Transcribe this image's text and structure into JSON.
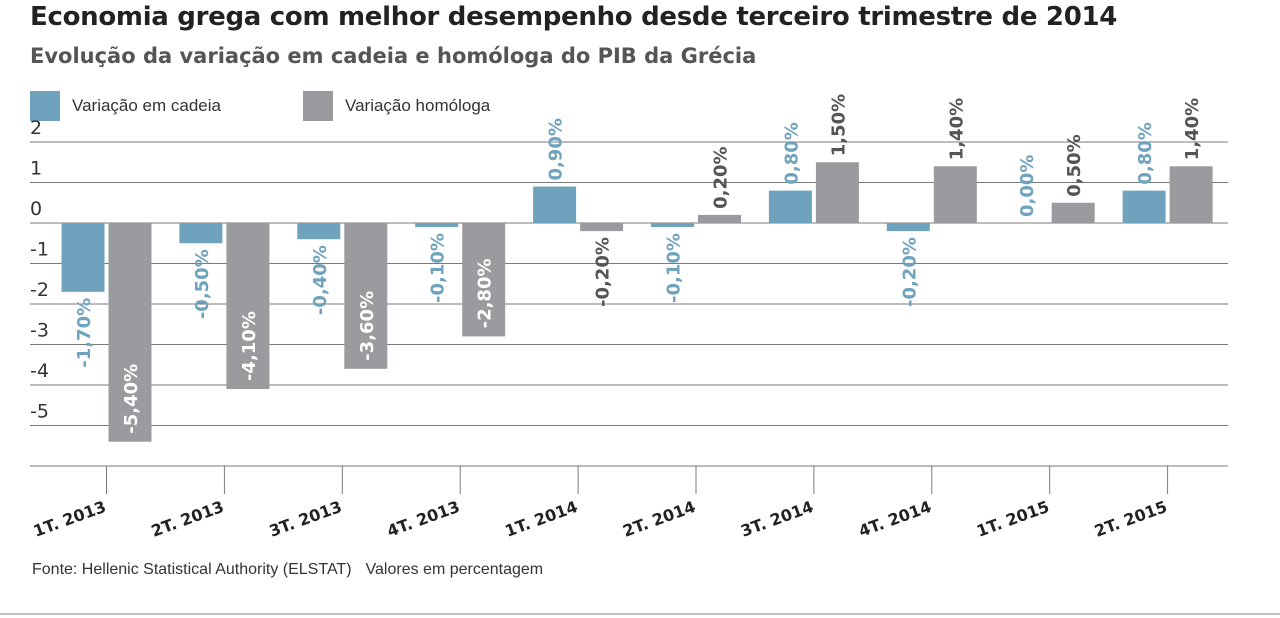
{
  "header": {
    "title": "Economia grega com melhor desempenho desde terceiro trimestre de 2014",
    "subtitle": "Evolução da variação em cadeia e homóloga do PIB da Grécia"
  },
  "footer": {
    "source": "Fonte: Hellenic Statistical Authority (ELSTAT)",
    "note": "Valores em percentagem"
  },
  "colors": {
    "cadeia": "#6fa3bd",
    "homologa": "#9a9b9e",
    "cadeia_label": "#6fa3bd",
    "homologa_label": "#555555",
    "grid": "#7a7a7a"
  },
  "chart_data": {
    "type": "bar",
    "categories": [
      "1T. 2013",
      "2T. 2013",
      "3T. 2013",
      "4T. 2013",
      "1T. 2014",
      "2T. 2014",
      "3T. 2014",
      "4T. 2014",
      "1T. 2015",
      "2T. 2015"
    ],
    "series": [
      {
        "name": "Variação em cadeia",
        "values": [
          -1.7,
          -0.5,
          -0.4,
          -0.1,
          0.9,
          -0.1,
          0.8,
          -0.2,
          0.0,
          0.8
        ],
        "labels": [
          "-1,70%",
          "-0,50%",
          "-0,40%",
          "-0,10%",
          "0,90%",
          "-0,10%",
          "0,80%",
          "-0,20%",
          "0,00%",
          "0,80%"
        ]
      },
      {
        "name": "Variação homóloga",
        "values": [
          -5.4,
          -4.1,
          -3.6,
          -2.8,
          -0.2,
          0.2,
          1.5,
          1.4,
          0.5,
          1.4
        ],
        "labels": [
          "-5,40%",
          "-4,10%",
          "-3,60%",
          "-2,80%",
          "-0,20%",
          "0,20%",
          "1,50%",
          "1,40%",
          "0,50%",
          "1,40%"
        ]
      }
    ],
    "yticks": [
      "2",
      "1",
      "0",
      "-1",
      "-2",
      "-3",
      "-4",
      "-5"
    ],
    "ylim": [
      -6,
      2
    ],
    "grid": true,
    "legend_position": "top-left"
  }
}
